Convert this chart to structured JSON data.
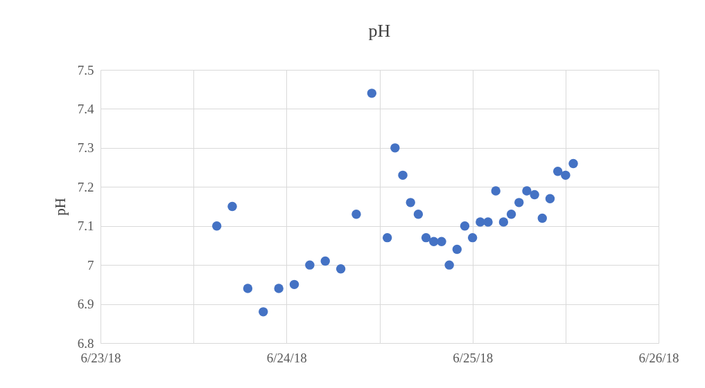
{
  "chart_data": {
    "type": "scatter",
    "title": "pH",
    "ylabel": "pH",
    "x": [
      "--06-23T15:00",
      "--06-23T17:00",
      "--06-23T19:00",
      "--06-23T21:00",
      "--06-23T23:00",
      "--06-24T01:00",
      "--06-24T03:00",
      "--06-24T05:00",
      "--06-24T07:00",
      "--06-24T09:00",
      "--06-24T11:00",
      "--06-24T13:00",
      "--06-24T14:00",
      "--06-24T15:00",
      "--06-24T16:00",
      "--06-24T17:00",
      "--06-24T18:00",
      "--06-24T19:00",
      "--06-24T20:00",
      "--06-24T21:00",
      "--06-24T22:00",
      "--06-24T23:00",
      "--06-25T00:00",
      "--06-25T01:00",
      "--06-25T02:00",
      "--06-25T03:00",
      "--06-25T04:00",
      "--06-25T05:00",
      "--06-25T06:00",
      "--06-25T07:00",
      "--06-25T08:00",
      "--06-25T09:00",
      "--06-25T10:00",
      "--06-25T11:00",
      "--06-25T12:00",
      "--06-25T13:00"
    ],
    "series": [
      {
        "color": "#4472c4",
        "values": [
          7.1,
          7.15,
          6.94,
          6.88,
          6.94,
          6.95,
          7.0,
          7.01,
          6.99,
          7.13,
          7.44,
          7.07,
          7.3,
          7.23,
          7.16,
          7.13,
          7.07,
          7.06,
          7.06,
          7.0,
          7.04,
          7.1,
          7.07,
          7.11,
          7.11,
          7.19,
          7.11,
          7.13,
          7.16,
          7.19,
          7.18,
          7.12,
          7.17,
          7.24,
          7.23,
          7.26
        ]
      }
    ],
    "xlim": [
      "--06-23",
      "--06-26"
    ],
    "xticks": [
      {
        "value": "--06-23",
        "label": "6/23/18"
      },
      {
        "value": "--06-23T12:00",
        "label": null
      },
      {
        "value": "--06-24",
        "label": "6/24/18"
      },
      {
        "value": "--06-24T12:00",
        "label": null
      },
      {
        "value": "--06-25",
        "label": "6/25/18"
      },
      {
        "value": "--06-25T12:00",
        "label": null
      },
      {
        "value": "--06-26",
        "label": "6/26/18"
      }
    ],
    "ylim": [
      6.8,
      7.5
    ],
    "yticks": [
      6.8,
      6.9,
      7,
      7.1,
      7.2,
      7.3,
      7.4,
      7.5
    ],
    "grid": true,
    "marker": "circle"
  }
}
